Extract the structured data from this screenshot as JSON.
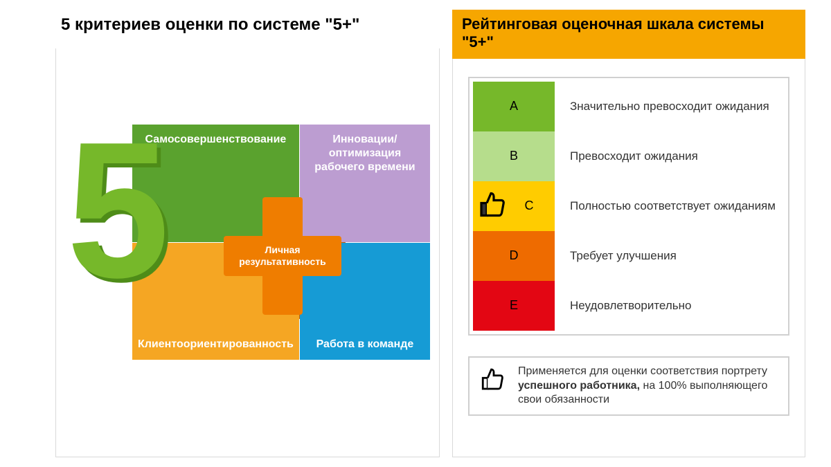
{
  "left": {
    "title": "5 критериев оценки по системе \"5+\"",
    "five_color": "#76b82a",
    "five_shadow": "#4e8c18",
    "plus": {
      "color": "#ef7d00",
      "shadow": "#c95f00",
      "label": "Личная результативность"
    },
    "quadrants": {
      "tl": {
        "label": "Самосовершенствование",
        "color": "#5aa22e"
      },
      "tr": {
        "label": "Инновации/оптимизация рабочего времени",
        "color": "#bc9dd1"
      },
      "bl": {
        "label": "Клиентоориентированность",
        "color": "#f5a623"
      },
      "br": {
        "label": "Работа в команде",
        "color": "#169bd5"
      }
    }
  },
  "right": {
    "title": "Рейтинговая оценочная шкала системы \"5+\"",
    "title_bg": "#f6a600",
    "scale": [
      {
        "letter": "A",
        "label": "Значительно превосходит ожидания",
        "color": "#76b82a",
        "thumb": false
      },
      {
        "letter": "B",
        "label": "Превосходит ожидания",
        "color": "#b6dd8c",
        "thumb": false
      },
      {
        "letter": "C",
        "label": "Полностью соответствует ожиданиям",
        "color": "#ffcc00",
        "thumb": true
      },
      {
        "letter": "D",
        "label": "Требует улучшения",
        "color": "#ee6b00",
        "thumb": false
      },
      {
        "letter": "E",
        "label": "Неудовлетворительно",
        "color": "#e30613",
        "thumb": false
      }
    ],
    "footer_pre": "Применяется для оценки соответствия портрету ",
    "footer_bold": "успешного работника,",
    "footer_post": " на 100% выполняющего свои обязанности"
  }
}
